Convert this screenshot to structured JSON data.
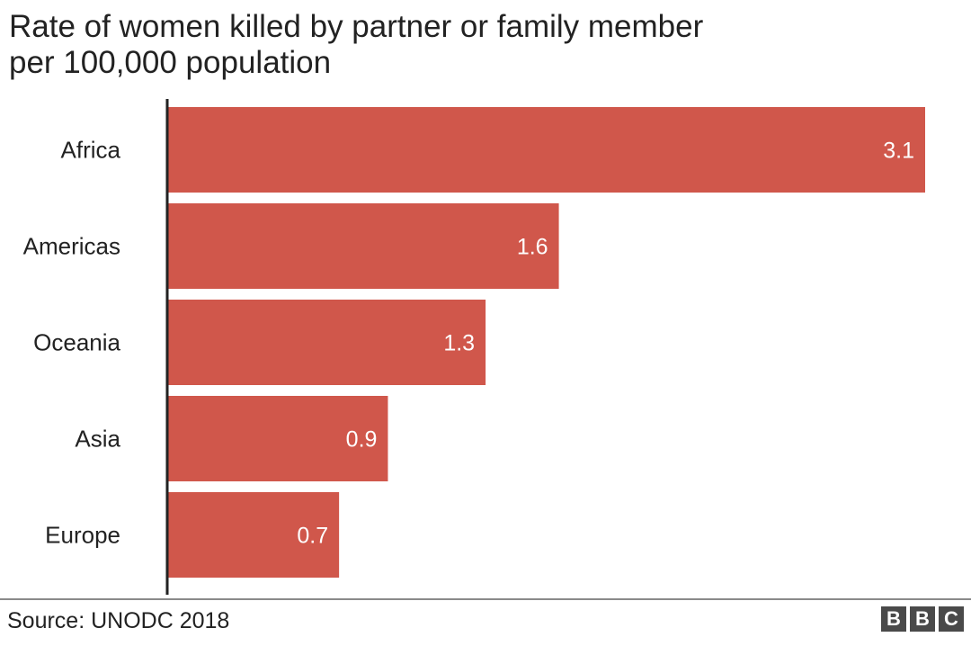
{
  "chart_data": {
    "type": "bar",
    "orientation": "horizontal",
    "title": "Rate of women killed by partner or family member",
    "subtitle": "per 100,000 population",
    "categories": [
      "Africa",
      "Americas",
      "Oceania",
      "Asia",
      "Europe"
    ],
    "values": [
      3.1,
      1.6,
      1.3,
      0.9,
      0.7
    ],
    "value_labels": [
      "3.1",
      "1.6",
      "1.3",
      "0.9",
      "0.7"
    ],
    "xlim": [
      0,
      3.1
    ],
    "grid": false,
    "bar_color": "#d0574b"
  },
  "footer": {
    "source": "Source: UNODC 2018",
    "logo_letters": [
      "B",
      "B",
      "C"
    ]
  },
  "colors": {
    "bar": "#d0574b",
    "axis": "#222222",
    "text": "#222222",
    "logo": "#4a4a4a"
  }
}
